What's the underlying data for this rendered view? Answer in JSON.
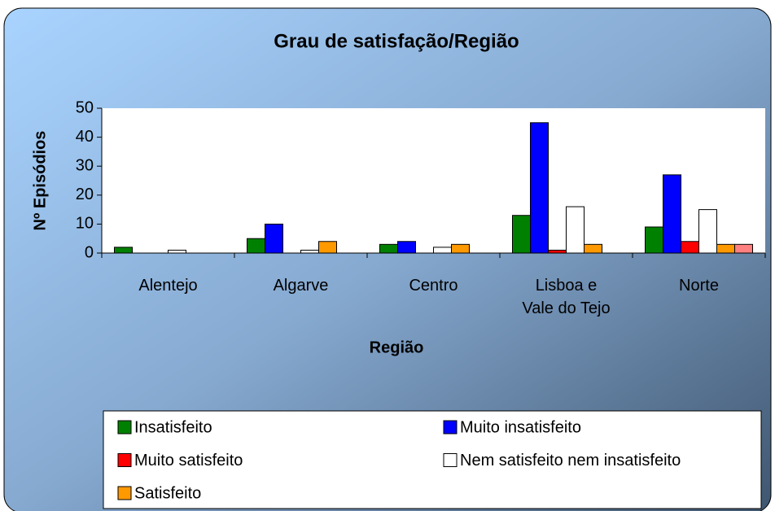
{
  "chart_data": {
    "type": "bar",
    "title": "Grau de satisfação/Região",
    "x_label": "Região",
    "y_label": "Nº Episódios",
    "categories": [
      "Alentejo",
      "Algarve",
      "Centro",
      "Lisboa e\nVale do Tejo",
      "Norte"
    ],
    "series": [
      {
        "name": "Insatisfeito",
        "color": "#008000",
        "values": [
          2,
          5,
          3,
          13,
          9
        ]
      },
      {
        "name": "Muito insatisfeito",
        "color": "#0000ff",
        "values": [
          0,
          10,
          4,
          45,
          27
        ]
      },
      {
        "name": "Muito satisfeito",
        "color": "#ff0000",
        "values": [
          0,
          0,
          0,
          1,
          4
        ]
      },
      {
        "name": "Nem satisfeito nem insatisfeito",
        "color": "#ffffff",
        "values": [
          1,
          1,
          2,
          16,
          15
        ]
      },
      {
        "name": "Satisfeito",
        "color": "#ff9900",
        "values": [
          0,
          4,
          3,
          3,
          3
        ]
      },
      {
        "color": "#ff8080",
        "values": [
          null,
          null,
          null,
          null,
          3
        ]
      }
    ],
    "ylim": [
      0,
      50
    ],
    "yticks": [
      0,
      10,
      20,
      30,
      40,
      50
    ],
    "legend": "bottom"
  }
}
